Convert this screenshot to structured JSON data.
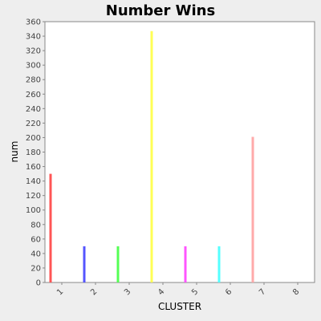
{
  "chart_data": {
    "type": "bar",
    "title": "Number Wins",
    "xlabel": "CLUSTER",
    "ylabel": "num",
    "categories": [
      "1",
      "2",
      "3",
      "4",
      "5",
      "6",
      "7",
      "8"
    ],
    "values": [
      150,
      50,
      50,
      347,
      50,
      50,
      201,
      0
    ],
    "bar_colors": [
      "#ff5555",
      "#5555ff",
      "#55ff55",
      "#ffff55",
      "#ff55ff",
      "#55ffff",
      "#ffaaaa",
      "#888888"
    ],
    "ylim": [
      0,
      360
    ],
    "y_ticks": [
      0,
      20,
      40,
      60,
      80,
      100,
      120,
      140,
      160,
      180,
      200,
      220,
      240,
      260,
      280,
      300,
      320,
      340,
      360
    ],
    "grid": false,
    "legend": "none"
  }
}
